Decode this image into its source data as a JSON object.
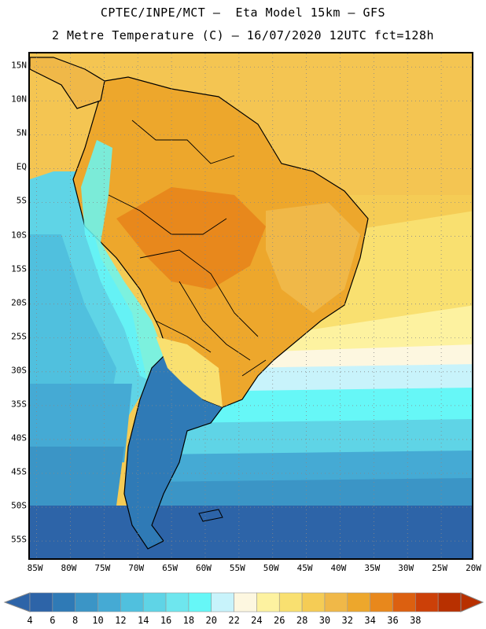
{
  "header": {
    "line1": "CPTEC/INPE/MCT –  Eta Model 15km – GFS",
    "line2": "2 Metre Temperature (C) – 16/07/2020 12UTC fct=128h"
  },
  "map": {
    "lat_labels": [
      "15N",
      "10N",
      "5N",
      "EQ",
      "5S",
      "10S",
      "15S",
      "20S",
      "25S",
      "30S",
      "35S",
      "40S",
      "45S",
      "50S",
      "55S"
    ],
    "lat_values": [
      15,
      10,
      5,
      0,
      -5,
      -10,
      -15,
      -20,
      -25,
      -30,
      -35,
      -40,
      -45,
      -50,
      -55
    ],
    "lon_labels": [
      "85W",
      "80W",
      "75W",
      "70W",
      "65W",
      "60W",
      "55W",
      "50W",
      "45W",
      "40W",
      "35W",
      "30W",
      "25W",
      "20W"
    ],
    "lon_values": [
      -85,
      -80,
      -75,
      -70,
      -65,
      -60,
      -55,
      -50,
      -45,
      -40,
      -35,
      -30,
      -25,
      -20
    ],
    "lat_range": [
      -58,
      17
    ],
    "lon_range": [
      -86,
      -20
    ]
  },
  "colorbar": {
    "ticks": [
      "4",
      "6",
      "8",
      "10",
      "12",
      "14",
      "16",
      "18",
      "20",
      "22",
      "24",
      "26",
      "28",
      "30",
      "32",
      "34",
      "36",
      "38"
    ],
    "colors": [
      "#2d64a8",
      "#2f7ab6",
      "#3b95c6",
      "#45aad4",
      "#50c0de",
      "#5fd4e6",
      "#6ee6ee",
      "#66f7f7",
      "#c8f3fb",
      "#fdf7e0",
      "#fdf2a0",
      "#f9e070",
      "#f5cc55",
      "#f0b848",
      "#eda72c",
      "#e8881c",
      "#dc6010",
      "#cc4008",
      "#b83000"
    ]
  }
}
